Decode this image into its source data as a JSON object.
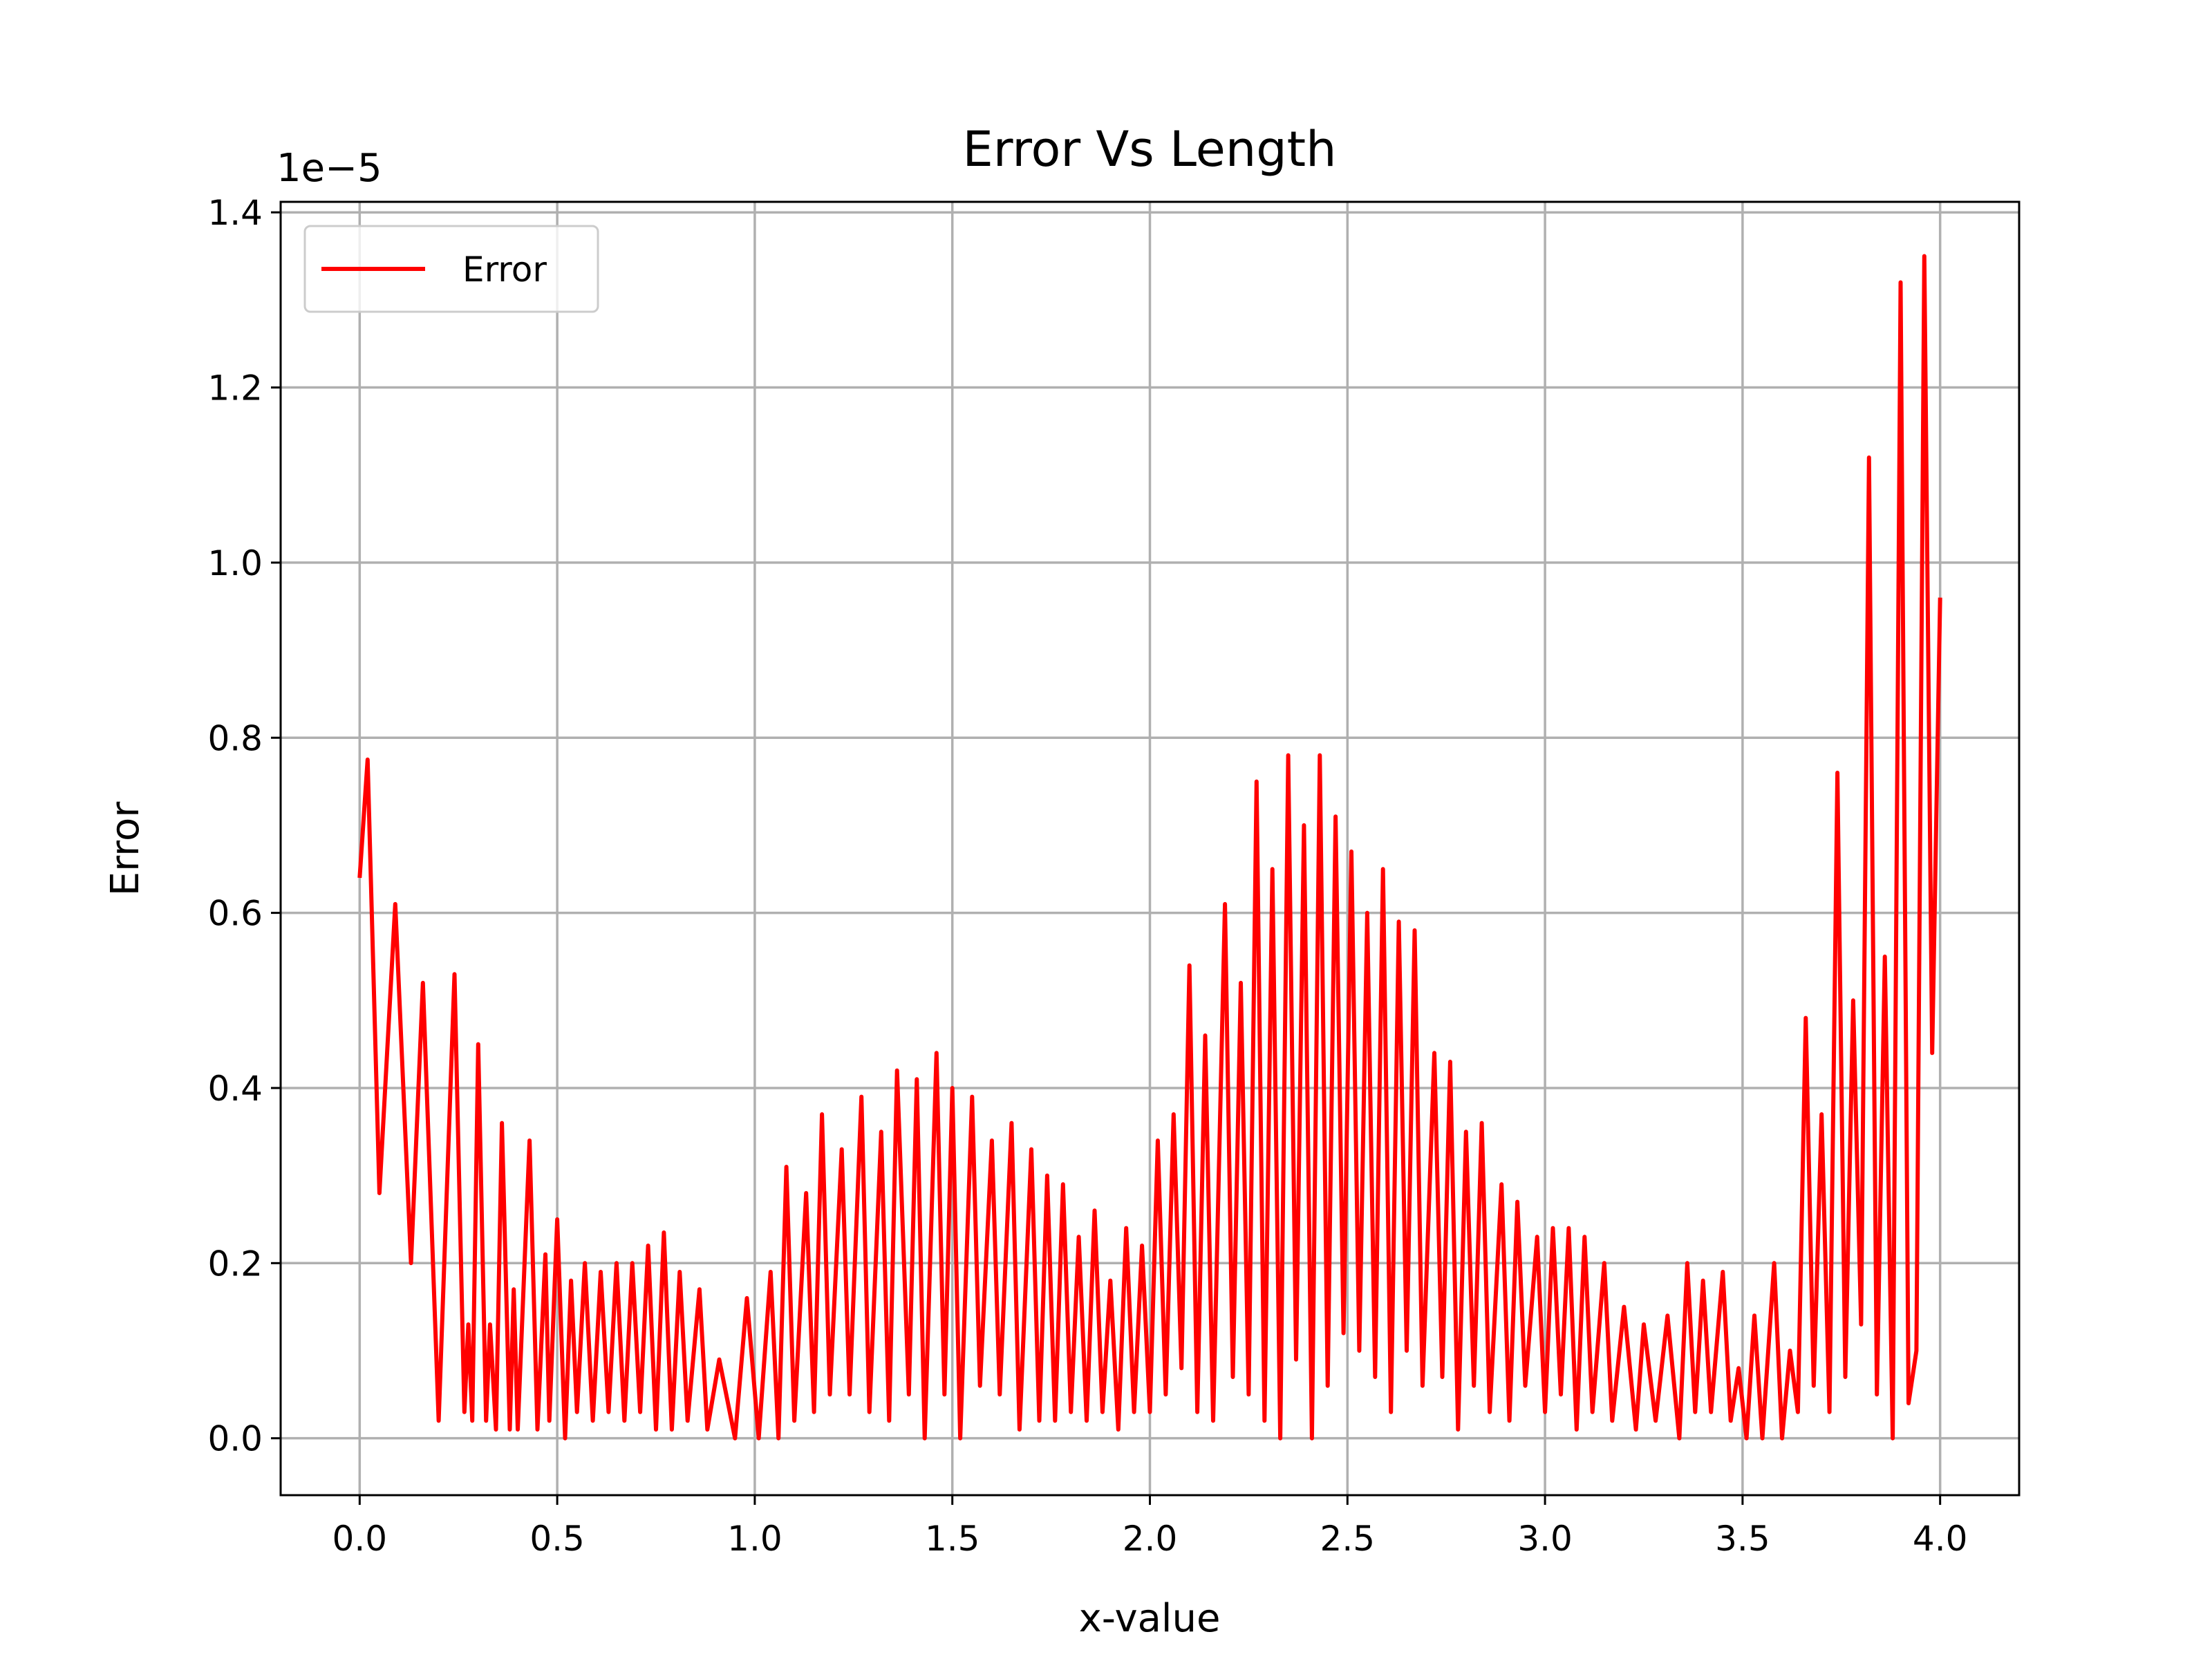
{
  "chart_data": {
    "type": "line",
    "title": "Error Vs Length",
    "xlabel": "x-value",
    "ylabel": "Error",
    "y_scale_label": "1e−5",
    "grid": true,
    "legend": "upper left",
    "xlim": [
      -0.2,
      4.2
    ],
    "ylim": [
      -0.065,
      1.412
    ],
    "xticks": [
      {
        "value": 0,
        "label": "0.0"
      },
      0.5,
      {
        "value": 1,
        "label": "1.0"
      },
      1.5,
      {
        "value": 2,
        "label": "2.0"
      },
      2.5,
      {
        "value": 3,
        "label": "3.0"
      },
      3.5,
      {
        "value": 4,
        "label": "4.0"
      }
    ],
    "yticks": [
      {
        "value": 0,
        "label": "0.0"
      },
      0.2,
      0.4,
      0.6,
      0.8,
      {
        "value": 1,
        "label": "1.0"
      },
      1.2,
      1.4
    ],
    "x": [
      0,
      0.02,
      0.05,
      0.09,
      0.13,
      0.16,
      0.2,
      0.24,
      0.265,
      0.275,
      0.285,
      0.3,
      0.32,
      0.33,
      0.345,
      0.36,
      0.38,
      0.39,
      0.4,
      0.43,
      0.45,
      0.47,
      0.48,
      0.5,
      0.52,
      0.535,
      0.55,
      0.57,
      0.59,
      0.61,
      0.63,
      0.65,
      0.67,
      0.69,
      0.71,
      0.73,
      0.75,
      0.77,
      0.79,
      0.81,
      0.83,
      0.86,
      0.88,
      0.91,
      0.95,
      0.98,
      1.01,
      1.04,
      1.06,
      1.08,
      1.1,
      1.13,
      1.15,
      1.17,
      1.19,
      1.22,
      1.24,
      1.27,
      1.29,
      1.32,
      1.34,
      1.36,
      1.39,
      1.41,
      1.43,
      1.46,
      1.48,
      1.5,
      1.52,
      1.55,
      1.57,
      1.6,
      1.62,
      1.65,
      1.67,
      1.7,
      1.72,
      1.74,
      1.76,
      1.78,
      1.8,
      1.82,
      1.84,
      1.86,
      1.88,
      1.9,
      1.92,
      1.94,
      1.96,
      1.98,
      2.0,
      2.02,
      2.04,
      2.06,
      2.08,
      2.1,
      2.12,
      2.14,
      2.16,
      2.19,
      2.21,
      2.23,
      2.25,
      2.27,
      2.29,
      2.31,
      2.33,
      2.35,
      2.37,
      2.39,
      2.41,
      2.43,
      2.45,
      2.47,
      2.49,
      2.51,
      2.53,
      2.55,
      2.57,
      2.59,
      2.61,
      2.63,
      2.65,
      2.67,
      2.69,
      2.72,
      2.74,
      2.76,
      2.78,
      2.8,
      2.82,
      2.84,
      2.86,
      2.89,
      2.91,
      2.93,
      2.95,
      2.98,
      3.0,
      3.02,
      3.04,
      3.06,
      3.08,
      3.1,
      3.12,
      3.15,
      3.17,
      3.2,
      3.23,
      3.25,
      3.28,
      3.31,
      3.34,
      3.36,
      3.38,
      3.4,
      3.42,
      3.45,
      3.47,
      3.49,
      3.51,
      3.53,
      3.55,
      3.58,
      3.6,
      3.62,
      3.64,
      3.66,
      3.68,
      3.7,
      3.72,
      3.74,
      3.76,
      3.78,
      3.8,
      3.82,
      3.84,
      3.86,
      3.88,
      3.9,
      3.92,
      3.94,
      3.96,
      3.98,
      4.0
    ],
    "series": [
      {
        "name": "Error",
        "color": "#ff0000",
        "values": [
          0.64,
          0.775,
          0.28,
          0.61,
          0.2,
          0.52,
          0.02,
          0.53,
          0.03,
          0.13,
          0.02,
          0.45,
          0.02,
          0.13,
          0.01,
          0.36,
          0.01,
          0.17,
          0.01,
          0.34,
          0.01,
          0.21,
          0.02,
          0.25,
          0.0,
          0.18,
          0.03,
          0.2,
          0.02,
          0.19,
          0.03,
          0.2,
          0.02,
          0.2,
          0.03,
          0.22,
          0.01,
          0.235,
          0.01,
          0.19,
          0.02,
          0.17,
          0.01,
          0.09,
          0.0,
          0.16,
          0.0,
          0.19,
          0.0,
          0.31,
          0.02,
          0.28,
          0.03,
          0.37,
          0.05,
          0.33,
          0.05,
          0.39,
          0.03,
          0.35,
          0.02,
          0.42,
          0.05,
          0.41,
          0.0,
          0.44,
          0.05,
          0.4,
          0.0,
          0.39,
          0.06,
          0.34,
          0.05,
          0.36,
          0.01,
          0.33,
          0.02,
          0.3,
          0.02,
          0.29,
          0.03,
          0.23,
          0.02,
          0.26,
          0.03,
          0.18,
          0.01,
          0.24,
          0.03,
          0.22,
          0.03,
          0.34,
          0.05,
          0.37,
          0.08,
          0.54,
          0.03,
          0.46,
          0.02,
          0.61,
          0.07,
          0.52,
          0.05,
          0.75,
          0.02,
          0.65,
          0.0,
          0.78,
          0.09,
          0.7,
          0.0,
          0.78,
          0.06,
          0.71,
          0.12,
          0.67,
          0.1,
          0.6,
          0.07,
          0.65,
          0.03,
          0.59,
          0.1,
          0.58,
          0.06,
          0.44,
          0.07,
          0.43,
          0.01,
          0.35,
          0.06,
          0.36,
          0.03,
          0.29,
          0.02,
          0.27,
          0.06,
          0.23,
          0.03,
          0.24,
          0.05,
          0.24,
          0.01,
          0.23,
          0.03,
          0.2,
          0.02,
          0.15,
          0.01,
          0.13,
          0.02,
          0.14,
          0.0,
          0.2,
          0.03,
          0.18,
          0.03,
          0.19,
          0.02,
          0.08,
          0.0,
          0.14,
          0.0,
          0.2,
          0.0,
          0.1,
          0.03,
          0.48,
          0.06,
          0.37,
          0.03,
          0.76,
          0.07,
          0.5,
          0.13,
          1.12,
          0.05,
          0.55,
          0.0,
          1.32,
          0.04,
          0.1,
          1.35,
          0.44,
          0.96
        ]
      }
    ]
  }
}
